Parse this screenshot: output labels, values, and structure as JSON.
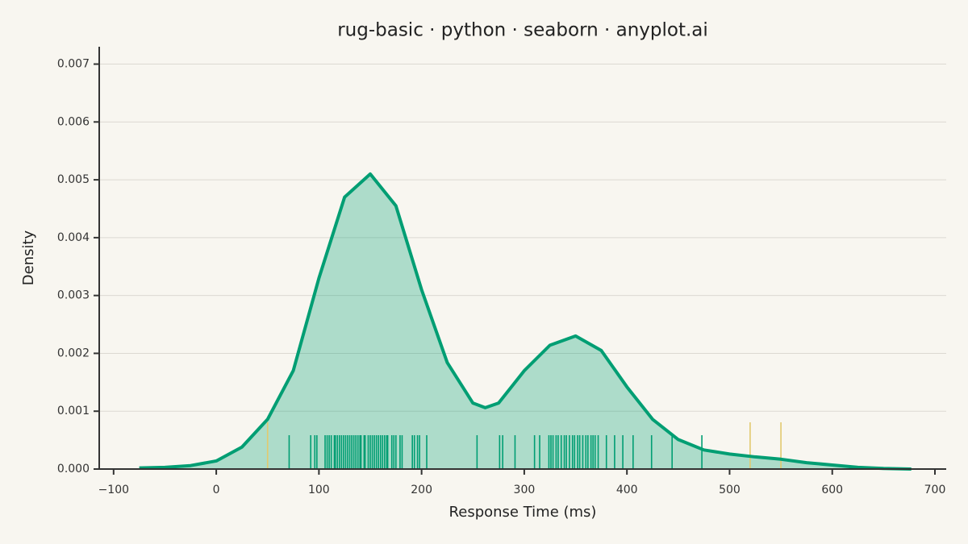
{
  "chart_data": {
    "type": "kde",
    "title": "rug-basic · python · seaborn · anyplot.ai",
    "x_label": "Response Time (ms)",
    "y_label": "Density",
    "color": "#009e73",
    "x": [
      -75,
      -50,
      -25,
      0,
      25,
      50,
      75,
      100,
      125,
      150,
      175,
      200,
      225,
      250,
      262,
      275,
      300,
      325,
      350,
      375,
      400,
      425,
      450,
      475,
      500,
      525,
      550,
      575,
      600,
      625,
      650,
      677
    ],
    "values": [
      2e-05,
      3e-05,
      6e-05,
      0.00014,
      0.00038,
      0.00086,
      0.0017,
      0.0033,
      0.0047,
      0.0051,
      0.00455,
      0.0031,
      0.00184,
      0.00114,
      0.00106,
      0.00114,
      0.0017,
      0.00214,
      0.0023,
      0.00205,
      0.00142,
      0.00086,
      0.00051,
      0.00033,
      0.00026,
      0.00021,
      0.00017,
      0.00011,
      7e-05,
      3e-05,
      1e-05,
      0
    ],
    "rug": [
      {
        "color": "#009e73",
        "values": [
          71,
          92,
          96,
          98,
          106,
          108,
          110,
          112,
          115,
          116,
          118,
          120,
          122,
          124,
          126,
          128,
          130,
          132,
          134,
          136,
          138,
          140,
          141,
          144,
          145,
          148,
          150,
          152,
          154,
          156,
          158,
          160,
          162,
          164,
          166,
          167,
          171,
          173,
          175,
          179,
          181,
          191,
          193,
          196,
          198,
          205,
          254,
          276,
          279,
          291,
          310,
          315,
          324,
          326,
          328,
          331,
          333,
          336,
          339,
          341,
          344,
          347,
          349,
          352,
          354,
          357,
          360,
          362,
          365,
          367,
          369,
          372,
          380,
          388,
          396,
          406,
          424,
          444,
          473
        ]
      },
      {
        "color": "#e2c96e",
        "values": [
          50,
          520,
          550
        ]
      }
    ],
    "xlim": [
      -114,
      711
    ],
    "ylim": [
      0,
      0.0073
    ],
    "xticks": [
      {
        "value": -100,
        "label": "−100"
      },
      0,
      100,
      200,
      300,
      400,
      500,
      600,
      700
    ],
    "yticks": [
      {
        "value": 0,
        "label": "0.000"
      },
      {
        "value": 0.001,
        "label": "0.001"
      },
      {
        "value": 0.002,
        "label": "0.002"
      },
      {
        "value": 0.003,
        "label": "0.003"
      },
      {
        "value": 0.004,
        "label": "0.004"
      },
      {
        "value": 0.005,
        "label": "0.005"
      },
      {
        "value": 0.006,
        "label": "0.006"
      },
      {
        "value": 0.007,
        "label": "0.007"
      }
    ],
    "grid": true
  }
}
